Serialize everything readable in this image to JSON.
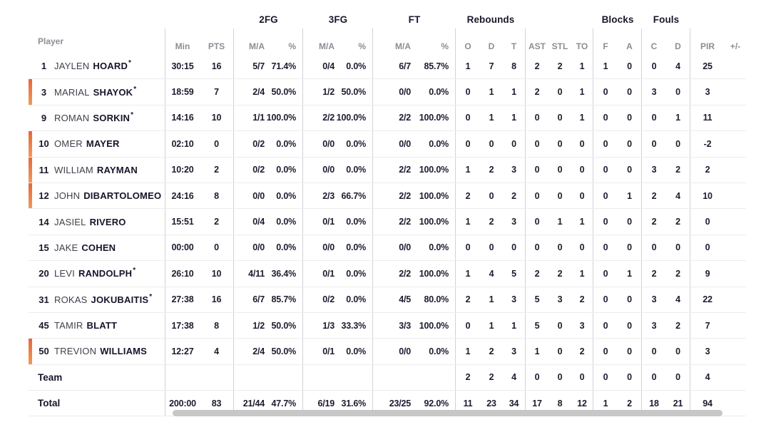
{
  "table": {
    "groups": {
      "fg2": "2FG",
      "fg3": "3FG",
      "ft": "FT",
      "rebounds": "Rebounds",
      "blocks": "Blocks",
      "fouls": "Fouls"
    },
    "headers": {
      "player": "Player",
      "min": "Min",
      "pts": "PTS",
      "fg2_ma": "M/A",
      "fg2_pct": "%",
      "fg3_ma": "M/A",
      "fg3_pct": "%",
      "ft_ma": "M/A",
      "ft_pct": "%",
      "reb_o": "O",
      "reb_d": "D",
      "reb_t": "T",
      "ast": "AST",
      "stl": "STL",
      "to": "TO",
      "blk_f": "F",
      "blk_a": "A",
      "foul_c": "C",
      "foul_d": "D",
      "pir": "PIR",
      "plus_minus": "+/-"
    },
    "col_defs": [
      {
        "key": "min",
        "cls": "c-min"
      },
      {
        "key": "pts",
        "cls": "c-pts div-r"
      },
      {
        "key": "fg2",
        "cls": "c-ma"
      },
      {
        "key": "fg2pct",
        "cls": "c-pct div-r"
      },
      {
        "key": "fg3",
        "cls": "c-ma"
      },
      {
        "key": "fg3pct",
        "cls": "c-pct div-r"
      },
      {
        "key": "ft",
        "cls": "c-ma"
      },
      {
        "key": "ftpct",
        "cls": "c-pct div-r"
      },
      {
        "key": "o",
        "cls": "c-sm"
      },
      {
        "key": "d",
        "cls": "c-sm"
      },
      {
        "key": "t",
        "cls": "c-sm div-r"
      },
      {
        "key": "ast",
        "cls": "c-sm"
      },
      {
        "key": "stl",
        "cls": "c-sm"
      },
      {
        "key": "to",
        "cls": "c-sm div-r"
      },
      {
        "key": "bf",
        "cls": "c-sm"
      },
      {
        "key": "ba",
        "cls": "c-sm div-r"
      },
      {
        "key": "fc",
        "cls": "c-sm"
      },
      {
        "key": "fd",
        "cls": "c-sm div-r"
      },
      {
        "key": "pir",
        "cls": "c-sm"
      },
      {
        "key": "pm",
        "cls": "c-sm"
      }
    ],
    "rows": [
      {
        "type": "player",
        "number": "1",
        "first": "JAYLEN",
        "last": "HOARD",
        "star": "*",
        "accent": false,
        "stats": {
          "min": "30:15",
          "pts": "16",
          "fg2": "5/7",
          "fg2pct": "71.4%",
          "fg3": "0/4",
          "fg3pct": "0.0%",
          "ft": "6/7",
          "ftpct": "85.7%",
          "o": "1",
          "d": "7",
          "t": "8",
          "ast": "2",
          "stl": "2",
          "to": "1",
          "bf": "1",
          "ba": "0",
          "fc": "0",
          "fd": "4",
          "pir": "25",
          "pm": ""
        }
      },
      {
        "type": "player",
        "number": "3",
        "first": "MARIAL",
        "last": "SHAYOK",
        "star": "*",
        "accent": true,
        "stats": {
          "min": "18:59",
          "pts": "7",
          "fg2": "2/4",
          "fg2pct": "50.0%",
          "fg3": "1/2",
          "fg3pct": "50.0%",
          "ft": "0/0",
          "ftpct": "0.0%",
          "o": "0",
          "d": "1",
          "t": "1",
          "ast": "2",
          "stl": "0",
          "to": "1",
          "bf": "0",
          "ba": "0",
          "fc": "3",
          "fd": "0",
          "pir": "3",
          "pm": ""
        }
      },
      {
        "type": "player",
        "number": "9",
        "first": "ROMAN",
        "last": "SORKIN",
        "star": "*",
        "accent": false,
        "stats": {
          "min": "14:16",
          "pts": "10",
          "fg2": "1/1",
          "fg2pct": "100.0%",
          "fg3": "2/2",
          "fg3pct": "100.0%",
          "ft": "2/2",
          "ftpct": "100.0%",
          "o": "0",
          "d": "1",
          "t": "1",
          "ast": "0",
          "stl": "0",
          "to": "1",
          "bf": "0",
          "ba": "0",
          "fc": "0",
          "fd": "1",
          "pir": "11",
          "pm": ""
        }
      },
      {
        "type": "player",
        "number": "10",
        "first": "OMER",
        "last": "MAYER",
        "star": "",
        "accent": true,
        "stats": {
          "min": "02:10",
          "pts": "0",
          "fg2": "0/2",
          "fg2pct": "0.0%",
          "fg3": "0/0",
          "fg3pct": "0.0%",
          "ft": "0/0",
          "ftpct": "0.0%",
          "o": "0",
          "d": "0",
          "t": "0",
          "ast": "0",
          "stl": "0",
          "to": "0",
          "bf": "0",
          "ba": "0",
          "fc": "0",
          "fd": "0",
          "pir": "-2",
          "pm": ""
        }
      },
      {
        "type": "player",
        "number": "11",
        "first": "WILLIAM",
        "last": "RAYMAN",
        "star": "",
        "accent": true,
        "stats": {
          "min": "10:20",
          "pts": "2",
          "fg2": "0/2",
          "fg2pct": "0.0%",
          "fg3": "0/0",
          "fg3pct": "0.0%",
          "ft": "2/2",
          "ftpct": "100.0%",
          "o": "1",
          "d": "2",
          "t": "3",
          "ast": "0",
          "stl": "0",
          "to": "0",
          "bf": "0",
          "ba": "0",
          "fc": "3",
          "fd": "2",
          "pir": "2",
          "pm": ""
        }
      },
      {
        "type": "player",
        "number": "12",
        "first": "JOHN",
        "last": "DIBARTOLOMEO",
        "star": "",
        "accent": true,
        "stats": {
          "min": "24:16",
          "pts": "8",
          "fg2": "0/0",
          "fg2pct": "0.0%",
          "fg3": "2/3",
          "fg3pct": "66.7%",
          "ft": "2/2",
          "ftpct": "100.0%",
          "o": "2",
          "d": "0",
          "t": "2",
          "ast": "0",
          "stl": "0",
          "to": "0",
          "bf": "0",
          "ba": "1",
          "fc": "2",
          "fd": "4",
          "pir": "10",
          "pm": ""
        }
      },
      {
        "type": "player",
        "number": "14",
        "first": "JASIEL",
        "last": "RIVERO",
        "star": "",
        "accent": false,
        "stats": {
          "min": "15:51",
          "pts": "2",
          "fg2": "0/4",
          "fg2pct": "0.0%",
          "fg3": "0/1",
          "fg3pct": "0.0%",
          "ft": "2/2",
          "ftpct": "100.0%",
          "o": "1",
          "d": "2",
          "t": "3",
          "ast": "0",
          "stl": "1",
          "to": "1",
          "bf": "0",
          "ba": "0",
          "fc": "2",
          "fd": "2",
          "pir": "0",
          "pm": ""
        }
      },
      {
        "type": "player",
        "number": "15",
        "first": "JAKE",
        "last": "COHEN",
        "star": "",
        "accent": false,
        "stats": {
          "min": "00:00",
          "pts": "0",
          "fg2": "0/0",
          "fg2pct": "0.0%",
          "fg3": "0/0",
          "fg3pct": "0.0%",
          "ft": "0/0",
          "ftpct": "0.0%",
          "o": "0",
          "d": "0",
          "t": "0",
          "ast": "0",
          "stl": "0",
          "to": "0",
          "bf": "0",
          "ba": "0",
          "fc": "0",
          "fd": "0",
          "pir": "0",
          "pm": ""
        }
      },
      {
        "type": "player",
        "number": "20",
        "first": "LEVI",
        "last": "RANDOLPH",
        "star": "*",
        "accent": false,
        "stats": {
          "min": "26:10",
          "pts": "10",
          "fg2": "4/11",
          "fg2pct": "36.4%",
          "fg3": "0/1",
          "fg3pct": "0.0%",
          "ft": "2/2",
          "ftpct": "100.0%",
          "o": "1",
          "d": "4",
          "t": "5",
          "ast": "2",
          "stl": "2",
          "to": "1",
          "bf": "0",
          "ba": "1",
          "fc": "2",
          "fd": "2",
          "pir": "9",
          "pm": ""
        }
      },
      {
        "type": "player",
        "number": "31",
        "first": "ROKAS",
        "last": "JOKUBAITIS",
        "star": "*",
        "accent": false,
        "stats": {
          "min": "27:38",
          "pts": "16",
          "fg2": "6/7",
          "fg2pct": "85.7%",
          "fg3": "0/2",
          "fg3pct": "0.0%",
          "ft": "4/5",
          "ftpct": "80.0%",
          "o": "2",
          "d": "1",
          "t": "3",
          "ast": "5",
          "stl": "3",
          "to": "2",
          "bf": "0",
          "ba": "0",
          "fc": "3",
          "fd": "4",
          "pir": "22",
          "pm": ""
        }
      },
      {
        "type": "player",
        "number": "45",
        "first": "TAMIR",
        "last": "BLATT",
        "star": "",
        "accent": false,
        "stats": {
          "min": "17:38",
          "pts": "8",
          "fg2": "1/2",
          "fg2pct": "50.0%",
          "fg3": "1/3",
          "fg3pct": "33.3%",
          "ft": "3/3",
          "ftpct": "100.0%",
          "o": "0",
          "d": "1",
          "t": "1",
          "ast": "5",
          "stl": "0",
          "to": "3",
          "bf": "0",
          "ba": "0",
          "fc": "3",
          "fd": "2",
          "pir": "7",
          "pm": ""
        }
      },
      {
        "type": "player",
        "number": "50",
        "first": "TREVION",
        "last": "WILLIAMS",
        "star": "",
        "accent": true,
        "stats": {
          "min": "12:27",
          "pts": "4",
          "fg2": "2/4",
          "fg2pct": "50.0%",
          "fg3": "0/1",
          "fg3pct": "0.0%",
          "ft": "0/0",
          "ftpct": "0.0%",
          "o": "1",
          "d": "2",
          "t": "3",
          "ast": "1",
          "stl": "0",
          "to": "2",
          "bf": "0",
          "ba": "0",
          "fc": "0",
          "fd": "0",
          "pir": "3",
          "pm": ""
        }
      },
      {
        "type": "team",
        "label": "Team",
        "stats": {
          "min": "",
          "pts": "",
          "fg2": "",
          "fg2pct": "",
          "fg3": "",
          "fg3pct": "",
          "ft": "",
          "ftpct": "",
          "o": "2",
          "d": "2",
          "t": "4",
          "ast": "0",
          "stl": "0",
          "to": "0",
          "bf": "0",
          "ba": "0",
          "fc": "0",
          "fd": "0",
          "pir": "4",
          "pm": ""
        }
      },
      {
        "type": "total",
        "label": "Total",
        "stats": {
          "min": "200:00",
          "pts": "83",
          "fg2": "21/44",
          "fg2pct": "47.7%",
          "fg3": "6/19",
          "fg3pct": "31.6%",
          "ft": "23/25",
          "ftpct": "92.0%",
          "o": "11",
          "d": "23",
          "t": "34",
          "ast": "17",
          "stl": "8",
          "to": "12",
          "bf": "1",
          "ba": "2",
          "fc": "18",
          "fd": "21",
          "pir": "94",
          "pm": ""
        }
      }
    ]
  },
  "colors": {
    "accent_bar_top": "#e4673f",
    "accent_bar_bottom": "#f09a57",
    "dark_text": "#18182b",
    "muted_header_text": "#8d8d95",
    "row_border": "#ececec",
    "column_divider": "#d2d2d6",
    "scrollbar_thumb": "#c7c7c7"
  }
}
